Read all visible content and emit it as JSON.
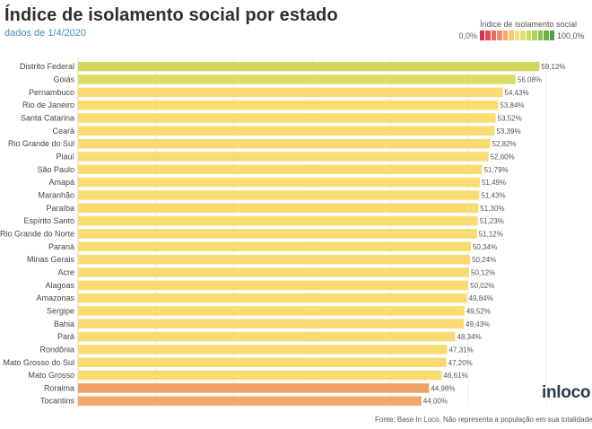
{
  "header": {
    "title": "Índice de isolamento social por estado",
    "subtitle": "dados de 1/4/2020"
  },
  "legend": {
    "title": "Índice de isolamento social",
    "min_label": "0,0%",
    "max_label": "100,0%",
    "colors": [
      "#d9304f",
      "#e04e5a",
      "#e86a62",
      "#ef8b6a",
      "#f4aa72",
      "#f8c878",
      "#f5de7a",
      "#e3e270",
      "#c9dc63",
      "#acd157",
      "#8cc24c",
      "#6db043",
      "#54a03b"
    ]
  },
  "footer": {
    "logo": "inloco",
    "source": "Fonte: Base In Loco. Não representa a população em sua totalidade."
  },
  "chart_data": {
    "type": "bar",
    "orientation": "horizontal",
    "title": "Índice de isolamento social por estado",
    "subtitle": "dados de 1/4/2020",
    "xlabel": "",
    "ylabel": "",
    "xlim": [
      0,
      100
    ],
    "grid": true,
    "categories": [
      "Distrito Federal",
      "Goiás",
      "Pernambuco",
      "Rio de Janeiro",
      "Santa Catarina",
      "Ceará",
      "Rio Grande do Sul",
      "Piauí",
      "São Paulo",
      "Amapá",
      "Maranhão",
      "Paraíba",
      "Espírito Santo",
      "Rio Grande do Norte",
      "Paraná",
      "Minas Gerais",
      "Acre",
      "Alagoas",
      "Amazonas",
      "Sergipe",
      "Bahia",
      "Pará",
      "Rondônia",
      "Mato Grosso do Sul",
      "Mato Grosso",
      "Roraima",
      "Tocantins"
    ],
    "values": [
      59.12,
      56.08,
      54.43,
      53.84,
      53.52,
      53.39,
      52.82,
      52.6,
      51.79,
      51.49,
      51.43,
      51.3,
      51.23,
      51.12,
      50.34,
      50.24,
      50.12,
      50.02,
      49.84,
      49.52,
      49.43,
      48.34,
      47.31,
      47.2,
      46.61,
      44.98,
      44.0
    ],
    "value_labels": [
      "59,12%",
      "56,08%",
      "54,43%",
      "53,84%",
      "53,52%",
      "53,39%",
      "52,82%",
      "52,60%",
      "51,79%",
      "51,49%",
      "51,43%",
      "51,30%",
      "51,23%",
      "51,12%",
      "50,34%",
      "50,24%",
      "50,12%",
      "50,02%",
      "49,84%",
      "49,52%",
      "49,43%",
      "48,34%",
      "47,31%",
      "47,20%",
      "46,61%",
      "44,98%",
      "44,00%"
    ],
    "bar_colors": [
      "#d2d85e",
      "#dcdb64",
      "#f8dc72",
      "#f8dc72",
      "#f8dc72",
      "#f8dc72",
      "#f8dc72",
      "#f8dc72",
      "#f8dc72",
      "#f8dc72",
      "#f8dc72",
      "#f8dc72",
      "#f8dc72",
      "#f8dc72",
      "#f8dc72",
      "#f8dc72",
      "#f8dc72",
      "#f8dc72",
      "#f8dc72",
      "#f8dc72",
      "#f8dc72",
      "#f8dc72",
      "#f8dc72",
      "#f8dc72",
      "#f8dc72",
      "#efa066",
      "#f2a86a"
    ]
  }
}
